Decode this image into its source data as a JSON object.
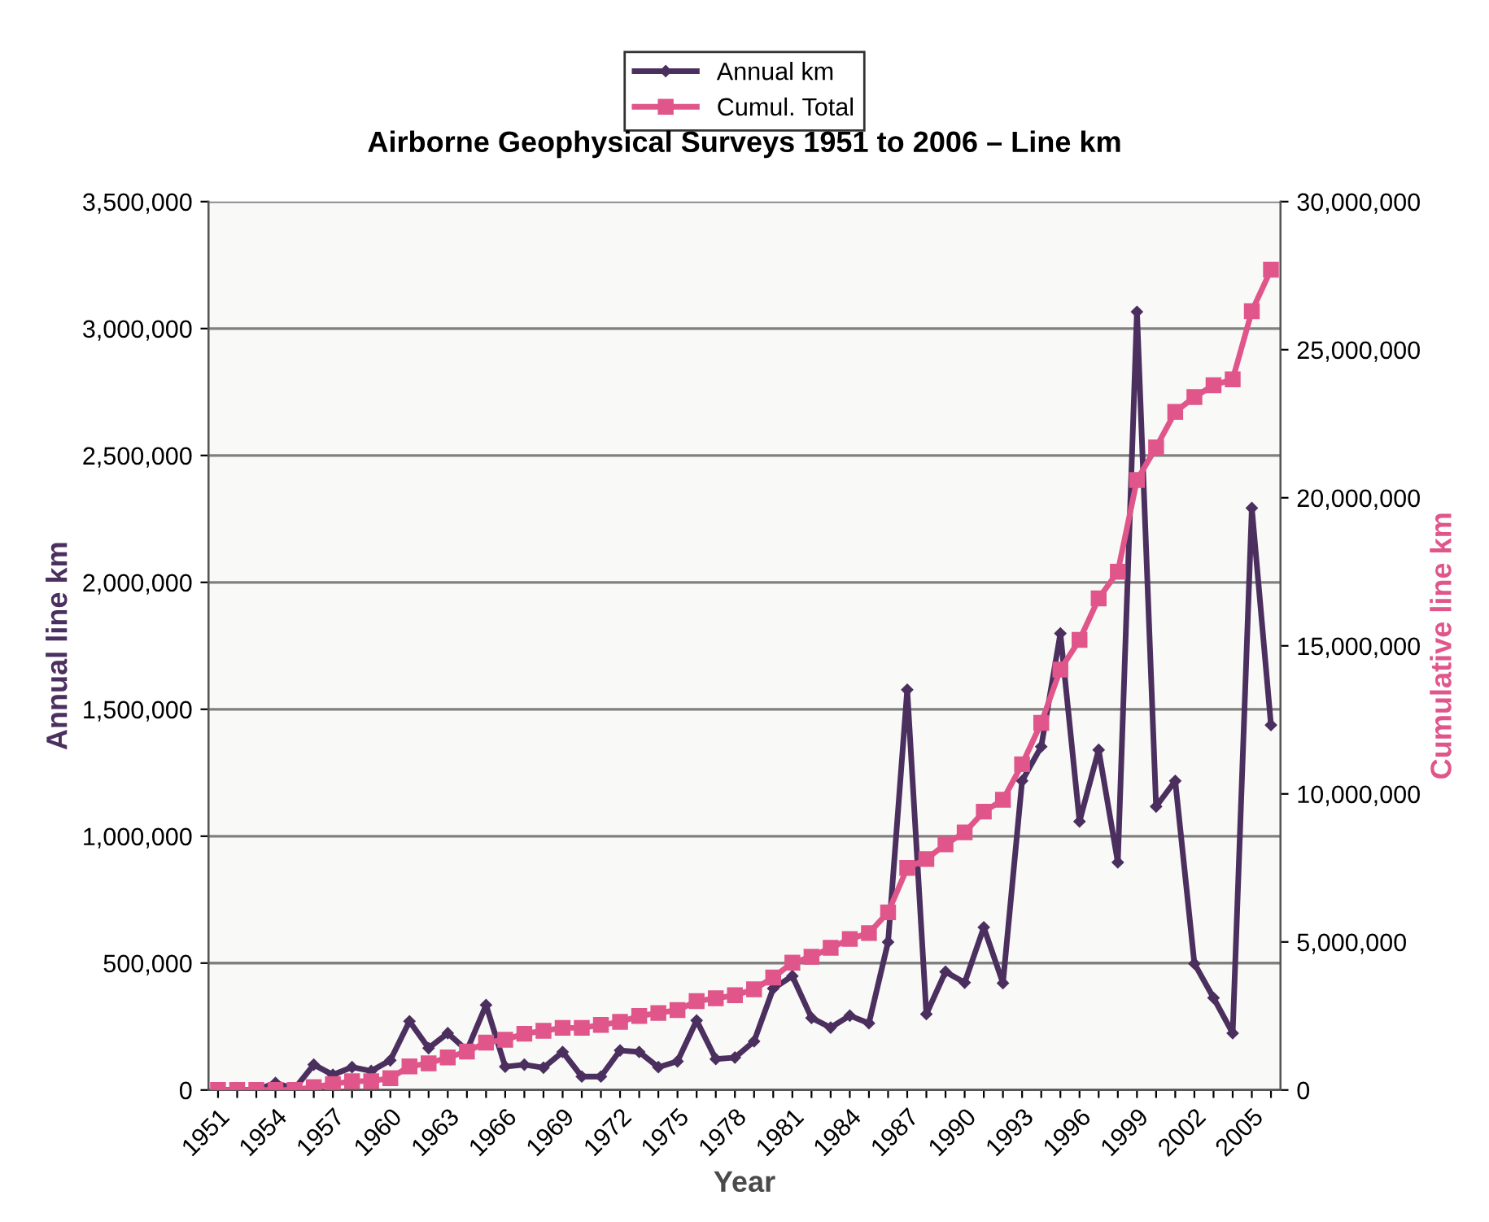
{
  "chart_data": {
    "type": "line",
    "title": "Airborne Geophysical Surveys 1951 to 2006 – Line km",
    "xlabel": "Year",
    "ylabel": "Annual line km",
    "y2label": "Cumulative line km",
    "categories": [
      "1951",
      null,
      null,
      "1954",
      null,
      null,
      "1957",
      null,
      null,
      "1960",
      null,
      null,
      "1963",
      null,
      null,
      "1966",
      null,
      null,
      "1969",
      null,
      null,
      "1972",
      null,
      null,
      "1975",
      null,
      null,
      "1978",
      null,
      null,
      "1981",
      null,
      null,
      "1984",
      null,
      null,
      "1987",
      null,
      null,
      "1990",
      null,
      null,
      "1993",
      null,
      null,
      "1996",
      null,
      null,
      "1999",
      null,
      null,
      "2002",
      null,
      null,
      "2005",
      null
    ],
    "series": [
      {
        "name": "Annual km",
        "color": "#4b2f5e",
        "marker": "diamond",
        "axis": "y",
        "values": [
          0,
          0,
          0,
          28000,
          5000,
          100000,
          60000,
          90000,
          75000,
          117000,
          271000,
          165000,
          224000,
          156000,
          335000,
          92000,
          100000,
          88000,
          150000,
          53000,
          53000,
          156000,
          150000,
          90000,
          113000,
          274000,
          122000,
          128000,
          192000,
          400000,
          449000,
          284000,
          246000,
          293000,
          263000,
          583000,
          1577000,
          299000,
          466000,
          423000,
          641000,
          421000,
          1218000,
          1353000,
          1799000,
          1058000,
          1340000,
          897000,
          3066000,
          1117000,
          1218000,
          498000,
          363000,
          224000,
          2293000,
          1438000
        ]
      },
      {
        "name": "Cumul. Total",
        "color": "#e0568a",
        "marker": "square",
        "axis": "y2",
        "values": [
          0,
          0,
          0,
          0,
          0,
          100000,
          200000,
          300000,
          300000,
          400000,
          800000,
          900000,
          1100000,
          1300000,
          1600000,
          1700000,
          1900000,
          2000000,
          2100000,
          2100000,
          2200000,
          2300000,
          2500000,
          2600000,
          2700000,
          3000000,
          3100000,
          3200000,
          3400000,
          3800000,
          4300000,
          4500000,
          4800000,
          5100000,
          5300000,
          6000000,
          7500000,
          7800000,
          8300000,
          8700000,
          9400000,
          9800000,
          11000000,
          12400000,
          14200000,
          15200000,
          16600000,
          17500000,
          20600000,
          21700000,
          22900000,
          23400000,
          23800000,
          24000000,
          26300000,
          27700000
        ]
      }
    ],
    "ylim": [
      0,
      3500000
    ],
    "yticks": [
      0,
      {
        "value": 500000,
        "label": "500,000"
      },
      {
        "value": 1000000,
        "label": "1,000,000"
      },
      {
        "value": 1500000,
        "label": "1,500,000"
      },
      {
        "value": 2000000,
        "label": "2,000,000"
      },
      {
        "value": 2500000,
        "label": "2,500,000"
      },
      {
        "value": 3000000,
        "label": "3,000,000"
      },
      {
        "value": 3500000,
        "label": "3,500,000"
      }
    ],
    "y2lim": [
      0,
      30000000
    ],
    "y2ticks": [
      0,
      {
        "value": 5000000,
        "label": "5,000,000"
      },
      {
        "value": 10000000,
        "label": "10,000,000"
      },
      {
        "value": 15000000,
        "label": "15,000,000"
      },
      {
        "value": 20000000,
        "label": "20,000,000"
      },
      {
        "value": 25000000,
        "label": "25,000,000"
      },
      {
        "value": 30000000,
        "label": "30,000,000"
      }
    ],
    "grid": "y",
    "legend": "top",
    "line_style": "solid"
  }
}
